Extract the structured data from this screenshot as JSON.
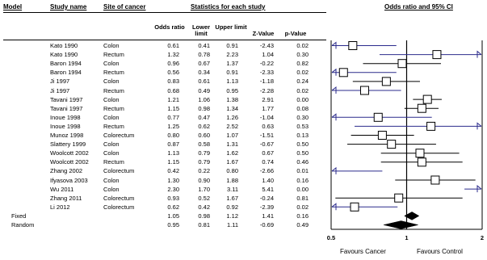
{
  "headers": {
    "model": "Model",
    "study_name": "Study name",
    "site": "Site of cancer",
    "stats": "Statistics for each study",
    "plot": "Odds ratio and 95% CI",
    "odds_ratio": "Odds ratio",
    "lower": "Lower limit",
    "upper": "Upper limit",
    "z": "Z-Value",
    "p": "p-Value"
  },
  "rows": [
    {
      "study": "Kato 1990",
      "site": "Colon",
      "or": "0.61",
      "lo": "0.41",
      "hi": "0.91",
      "z": "-2.43",
      "p": "0.02"
    },
    {
      "study": "Kato 1990",
      "site": "Rectum",
      "or": "1.32",
      "lo": "0.78",
      "hi": "2.23",
      "z": "1.04",
      "p": "0.30"
    },
    {
      "study": "Baron 1994",
      "site": "Colon",
      "or": "0.96",
      "lo": "0.67",
      "hi": "1.37",
      "z": "-0.22",
      "p": "0.82"
    },
    {
      "study": "Baron 1994",
      "site": "Rectum",
      "or": "0.56",
      "lo": "0.34",
      "hi": "0.91",
      "z": "-2.33",
      "p": "0.02"
    },
    {
      "study": "Ji 1997",
      "site": "Colon",
      "or": "0.83",
      "lo": "0.61",
      "hi": "1.13",
      "z": "-1.18",
      "p": "0.24"
    },
    {
      "study": "Ji 1997",
      "site": "Rectum",
      "or": "0.68",
      "lo": "0.49",
      "hi": "0.95",
      "z": "-2.28",
      "p": "0.02"
    },
    {
      "study": "Tavani 1997",
      "site": "Colon",
      "or": "1.21",
      "lo": "1.06",
      "hi": "1.38",
      "z": "2.91",
      "p": "0.00"
    },
    {
      "study": "Tavani 1997",
      "site": "Rectum",
      "or": "1.15",
      "lo": "0.98",
      "hi": "1.34",
      "z": "1.77",
      "p": "0.08"
    },
    {
      "study": "Inoue 1998",
      "site": "Colon",
      "or": "0.77",
      "lo": "0.47",
      "hi": "1.26",
      "z": "-1.04",
      "p": "0.30"
    },
    {
      "study": "Inoue 1998",
      "site": "Rectum",
      "or": "1.25",
      "lo": "0.62",
      "hi": "2.52",
      "z": "0.63",
      "p": "0.53"
    },
    {
      "study": "Munoz 1998",
      "site": "Colorectum",
      "or": "0.80",
      "lo": "0.60",
      "hi": "1.07",
      "z": "-1.51",
      "p": "0.13"
    },
    {
      "study": "Slattery 1999",
      "site": "Colon",
      "or": "0.87",
      "lo": "0.58",
      "hi": "1.31",
      "z": "-0.67",
      "p": "0.50"
    },
    {
      "study": "Woolcott 2002",
      "site": "Colon",
      "or": "1.13",
      "lo": "0.79",
      "hi": "1.62",
      "z": "0.67",
      "p": "0.50"
    },
    {
      "study": "Woolcott 2002",
      "site": "Rectum",
      "or": "1.15",
      "lo": "0.79",
      "hi": "1.67",
      "z": "0.74",
      "p": "0.46"
    },
    {
      "study": "Zhang 2002",
      "site": "Colorectum",
      "or": "0.42",
      "lo": "0.22",
      "hi": "0.80",
      "z": "-2.66",
      "p": "0.01"
    },
    {
      "study": "Ifyasova 2003",
      "site": "Colon",
      "or": "1.30",
      "lo": "0.90",
      "hi": "1.88",
      "z": "1.40",
      "p": "0.16"
    },
    {
      "study": "Wu 2011",
      "site": "Colon",
      "or": "2.30",
      "lo": "1.70",
      "hi": "3.11",
      "z": "5.41",
      "p": "0.00"
    },
    {
      "study": "Zhang 2011",
      "site": "Colorectum",
      "or": "0.93",
      "lo": "0.52",
      "hi": "1.67",
      "z": "-0.24",
      "p": "0.81"
    },
    {
      "study": "Li 2012",
      "site": "Colorectum",
      "or": "0.62",
      "lo": "0.42",
      "hi": "0.92",
      "z": "-2.39",
      "p": "0.02"
    }
  ],
  "summary": [
    {
      "model": "Fixed",
      "or": "1.05",
      "lo": "0.98",
      "hi": "1.12",
      "z": "1.41",
      "p": "0.16"
    },
    {
      "model": "Random",
      "or": "0.95",
      "lo": "0.81",
      "hi": "1.11",
      "z": "-0.69",
      "p": "0.49"
    }
  ],
  "favours": {
    "left": "Favours Cancer",
    "right": "Favours Control"
  },
  "chart_data": {
    "type": "forest",
    "title": "Odds ratio and 95% CI",
    "x_scale": "log",
    "xlim": [
      0.5,
      2
    ],
    "xticks": [
      "0.5",
      "1",
      "2"
    ],
    "reference_line": 1,
    "series": [
      {
        "label": "Kato 1990 Colon",
        "or": 0.61,
        "lower": 0.41,
        "upper": 0.91
      },
      {
        "label": "Kato 1990 Rectum",
        "or": 1.32,
        "lower": 0.78,
        "upper": 2.23
      },
      {
        "label": "Baron 1994 Colon",
        "or": 0.96,
        "lower": 0.67,
        "upper": 1.37
      },
      {
        "label": "Baron 1994 Rectum",
        "or": 0.56,
        "lower": 0.34,
        "upper": 0.91
      },
      {
        "label": "Ji 1997 Colon",
        "or": 0.83,
        "lower": 0.61,
        "upper": 1.13
      },
      {
        "label": "Ji 1997 Rectum",
        "or": 0.68,
        "lower": 0.49,
        "upper": 0.95
      },
      {
        "label": "Tavani 1997 Colon",
        "or": 1.21,
        "lower": 1.06,
        "upper": 1.38
      },
      {
        "label": "Tavani 1997 Rectum",
        "or": 1.15,
        "lower": 0.98,
        "upper": 1.34
      },
      {
        "label": "Inoue 1998 Colon",
        "or": 0.77,
        "lower": 0.47,
        "upper": 1.26
      },
      {
        "label": "Inoue 1998 Rectum",
        "or": 1.25,
        "lower": 0.62,
        "upper": 2.52
      },
      {
        "label": "Munoz 1998 Colorectum",
        "or": 0.8,
        "lower": 0.6,
        "upper": 1.07
      },
      {
        "label": "Slattery 1999 Colon",
        "or": 0.87,
        "lower": 0.58,
        "upper": 1.31
      },
      {
        "label": "Woolcott 2002 Colon",
        "or": 1.13,
        "lower": 0.79,
        "upper": 1.62
      },
      {
        "label": "Woolcott 2002 Rectum",
        "or": 1.15,
        "lower": 0.79,
        "upper": 1.67
      },
      {
        "label": "Zhang 2002 Colorectum",
        "or": 0.42,
        "lower": 0.22,
        "upper": 0.8
      },
      {
        "label": "Ifyasova 2003 Colon",
        "or": 1.3,
        "lower": 0.9,
        "upper": 1.88
      },
      {
        "label": "Wu 2011 Colon",
        "or": 2.3,
        "lower": 1.7,
        "upper": 3.11
      },
      {
        "label": "Zhang 2011 Colorectum",
        "or": 0.93,
        "lower": 0.52,
        "upper": 1.67
      },
      {
        "label": "Li 2012 Colorectum",
        "or": 0.62,
        "lower": 0.42,
        "upper": 0.92
      }
    ],
    "pooled": [
      {
        "model": "Fixed",
        "or": 1.05,
        "lower": 0.98,
        "upper": 1.12
      },
      {
        "model": "Random",
        "or": 0.95,
        "lower": 0.81,
        "upper": 1.11
      }
    ],
    "line_color": "#000000",
    "arrow_color": "#2b2b8c"
  }
}
